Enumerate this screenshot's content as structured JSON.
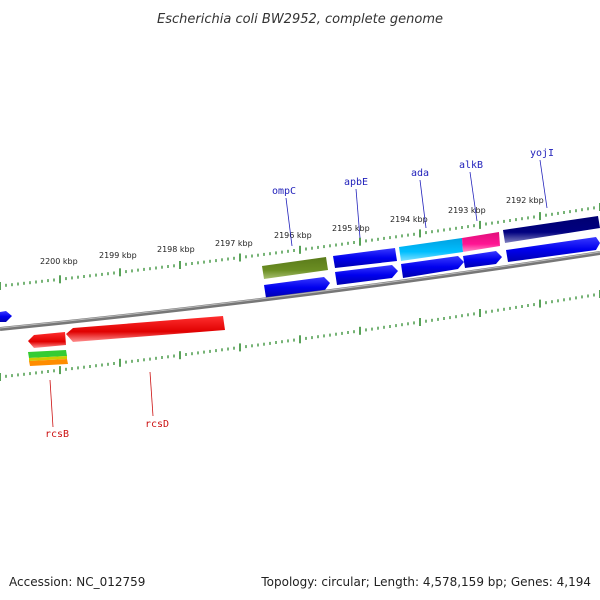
{
  "title": "Escherichia coli BW2952, complete genome",
  "accession": "Accession: NC_012759",
  "topology": "Topology: circular; Length: 4,578,159 bp; Genes: 4,194",
  "scale_labels": [
    "2200 kbp",
    "2199 kbp",
    "2198 kbp",
    "2197 kbp",
    "2196 kbp",
    "2195 kbp",
    "2194 kbp",
    "2193 kbp",
    "2192 kbp"
  ],
  "gene_labels_top": [
    "ompC",
    "apbE",
    "ada",
    "alkB",
    "yojI"
  ],
  "gene_labels_bottom": [
    "rcsB",
    "rcsD"
  ],
  "colors": {
    "backbone": "#808080",
    "tick": "#2e8b2e",
    "forward_cds": "#0000ee",
    "reverse_cds": "#ee0000",
    "ompC": "#6b8e23",
    "ada": "#00bfff",
    "alkB": "#ff1493",
    "yojI": "#000080",
    "top_label": "#2222bb",
    "bottom_label": "#cc1111"
  }
}
